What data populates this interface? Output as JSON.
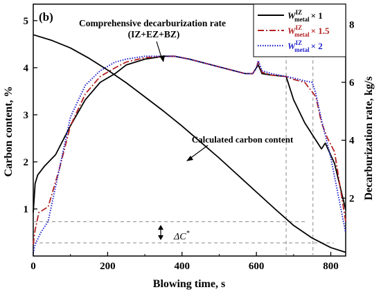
{
  "chart_data": {
    "type": "line",
    "panel_label": "(b)",
    "xlabel": "Blowing time, s",
    "ylabel_left": "Carbon content, %",
    "ylabel_right": "Decarburization rate, kg/s",
    "xlim": [
      0,
      840
    ],
    "ylim_left": [
      0,
      5.35
    ],
    "ylim_right": [
      0,
      8.7
    ],
    "x_ticks": [
      0,
      200,
      400,
      600,
      800
    ],
    "y_left_ticks": [
      1,
      2,
      3,
      4,
      5
    ],
    "y_right_ticks": [
      2,
      4,
      6,
      8
    ],
    "grid": false,
    "legend_position": "top-right",
    "annotations": {
      "rate_label_line1": "Comprehensive decarburization rate",
      "rate_label_line2": "(IZ+EZ+BZ)",
      "carbon_label": "Calculated carbon content",
      "delta_label": "ΔC",
      "delta_superscript": "*"
    },
    "reference_lines": {
      "vertical_x": [
        680,
        752
      ],
      "horizontal_y_left": [
        0.73,
        0.28
      ]
    },
    "series": [
      {
        "name": "W IZ metal × 1",
        "legend": {
          "W": "W",
          "sup": "IZ",
          "sub": "metal",
          "mult": "× 1"
        },
        "axis": "right",
        "style": "solid",
        "color": "#000000",
        "x": [
          0,
          5,
          12,
          30,
          60,
          100,
          140,
          180,
          220,
          250,
          300,
          350,
          380,
          420,
          480,
          540,
          570,
          590,
          600,
          605,
          615,
          640,
          680,
          700,
          730,
          760,
          775,
          785,
          810,
          840
        ],
        "y": [
          1.5,
          2.5,
          2.8,
          3.1,
          3.5,
          4.5,
          5.4,
          6.0,
          6.3,
          6.6,
          6.8,
          6.9,
          6.9,
          6.8,
          6.6,
          6.4,
          6.3,
          6.3,
          6.5,
          6.6,
          6.3,
          6.25,
          6.2,
          5.4,
          4.6,
          4.0,
          3.7,
          3.9,
          3.2,
          1.6
        ]
      },
      {
        "name": "W IZ metal × 1.5",
        "legend": {
          "W": "W",
          "sup": "IZ",
          "sub": "metal",
          "mult": "× 1.5"
        },
        "axis": "right",
        "style": "dashdot",
        "color": "#b22222",
        "x": [
          0,
          5,
          15,
          40,
          70,
          100,
          140,
          180,
          220,
          250,
          300,
          350,
          380,
          420,
          480,
          540,
          570,
          590,
          600,
          605,
          615,
          640,
          680,
          700,
          730,
          760,
          775,
          790,
          810,
          840
        ],
        "y": [
          0.4,
          0.9,
          1.5,
          1.7,
          3.0,
          4.5,
          5.6,
          6.2,
          6.5,
          6.7,
          6.85,
          6.9,
          6.9,
          6.8,
          6.6,
          6.4,
          6.3,
          6.3,
          6.5,
          6.7,
          6.35,
          6.25,
          6.2,
          6.1,
          6.0,
          5.5,
          4.6,
          4.1,
          3.6,
          1.2
        ]
      },
      {
        "name": "W IZ metal × 2",
        "legend": {
          "W": "W",
          "sup": "IZ",
          "sub": "metal",
          "mult": "× 2"
        },
        "axis": "right",
        "style": "dotted",
        "color": "#1f1fcc",
        "x": [
          0,
          5,
          20,
          40,
          70,
          100,
          140,
          180,
          220,
          250,
          300,
          350,
          380,
          420,
          480,
          540,
          570,
          590,
          600,
          605,
          615,
          640,
          680,
          700,
          730,
          750,
          760,
          775,
          800,
          840
        ],
        "y": [
          0.1,
          0.4,
          0.8,
          1.2,
          3.0,
          4.8,
          5.9,
          6.4,
          6.7,
          6.8,
          6.9,
          6.9,
          6.9,
          6.8,
          6.6,
          6.4,
          6.3,
          6.3,
          6.5,
          6.75,
          6.4,
          6.3,
          6.2,
          6.15,
          6.05,
          6.0,
          5.6,
          4.7,
          3.4,
          0.8
        ]
      },
      {
        "name": "Calculated carbon content",
        "axis": "left",
        "style": "solid",
        "color": "#000000",
        "x": [
          0,
          50,
          100,
          150,
          200,
          250,
          300,
          350,
          400,
          450,
          500,
          550,
          600,
          650,
          700,
          750,
          800,
          840
        ],
        "y": [
          4.7,
          4.58,
          4.42,
          4.2,
          3.95,
          3.68,
          3.38,
          3.08,
          2.76,
          2.42,
          2.08,
          1.72,
          1.36,
          1.0,
          0.65,
          0.38,
          0.18,
          0.08
        ]
      }
    ]
  }
}
